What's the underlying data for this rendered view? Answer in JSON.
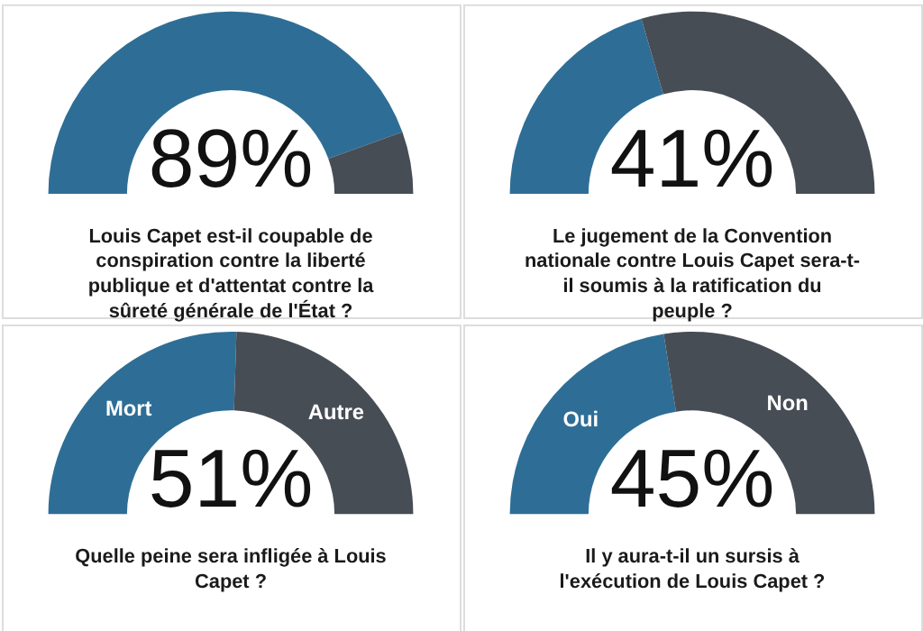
{
  "chart_data": [
    {
      "type": "donut",
      "title": "Louis Capet est-il coupable de conspiration contre la liberté publique et d'attentat contre la sûreté générale de l'État ?",
      "categories": [
        null,
        null
      ],
      "values": [
        89,
        11
      ],
      "colors": [
        "#2e6e96",
        "#474d55"
      ],
      "annotations": [
        "89%"
      ]
    },
    {
      "type": "donut",
      "title": "Le jugement de la Convention nationale contre Louis Capet sera-t-il soumis à la ratification du peuple ?",
      "categories": [
        null,
        null
      ],
      "values": [
        41,
        59
      ],
      "colors": [
        "#2e6e96",
        "#474d55"
      ],
      "annotations": [
        "41%"
      ]
    },
    {
      "type": "donut",
      "title": "Quelle peine sera infligée à Louis Capet ?",
      "categories": [
        "Mort",
        "Autre"
      ],
      "values": [
        51,
        49
      ],
      "colors": [
        "#2e6e96",
        "#474d55"
      ],
      "annotations": [
        "51%"
      ]
    },
    {
      "type": "donut",
      "title": "Il y aura-t-il un sursis à l'exécution de Louis Capet ?",
      "categories": [
        "Oui",
        "Non"
      ],
      "values": [
        45,
        55
      ],
      "colors": [
        "#2e6e96",
        "#474d55"
      ],
      "annotations": [
        "45%"
      ]
    }
  ]
}
